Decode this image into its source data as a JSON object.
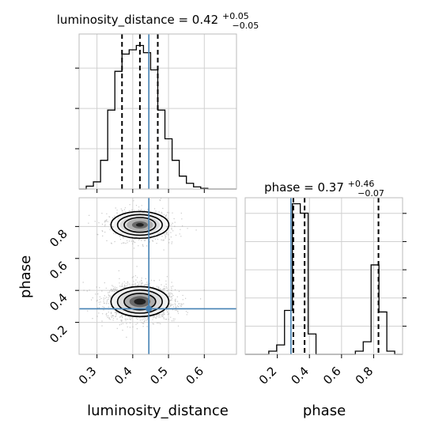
{
  "chart_data": {
    "type": "corner",
    "parameters": [
      "luminosity_distance",
      "phase"
    ],
    "truths": {
      "luminosity_distance": 0.445,
      "phase": 0.285
    },
    "truth_color": "#4682b4",
    "grid": true,
    "panels": [
      {
        "id": "luminosity_distance-hist",
        "type": "histogram",
        "title": {
          "label": "luminosity_distance = 0.42",
          "sup": "+0.05",
          "sub": "−0.05"
        },
        "xlim": [
          0.25,
          0.69
        ],
        "x_ticks": [
          0.3,
          0.4,
          0.5,
          0.6
        ],
        "bins": [
          0.25,
          0.27,
          0.29,
          0.31,
          0.33,
          0.35,
          0.37,
          0.39,
          0.41,
          0.43,
          0.45,
          0.47,
          0.49,
          0.51,
          0.53,
          0.55,
          0.57,
          0.59,
          0.61,
          0.63,
          0.65,
          0.67,
          0.69
        ],
        "counts": [
          0,
          0.02,
          0.05,
          0.2,
          0.55,
          0.82,
          0.94,
          0.97,
          1.0,
          0.95,
          0.83,
          0.55,
          0.35,
          0.2,
          0.09,
          0.04,
          0.015,
          0.005,
          0,
          0,
          0,
          0
        ],
        "quantile_lines": [
          0.37,
          0.42,
          0.47
        ]
      },
      {
        "id": "phase-hist",
        "type": "histogram",
        "title": {
          "label": "phase = 0.37",
          "sup": "+0.46",
          "sub": "−0.07"
        },
        "xlim": [
          0.0,
          0.98
        ],
        "x_ticks": [
          0.2,
          0.4,
          0.6,
          0.8
        ],
        "bins": [
          0.0,
          0.049,
          0.098,
          0.147,
          0.196,
          0.245,
          0.294,
          0.343,
          0.392,
          0.441,
          0.49,
          0.539,
          0.588,
          0.637,
          0.686,
          0.735,
          0.784,
          0.833,
          0.882,
          0.931,
          0.98
        ],
        "counts": [
          0,
          0,
          0,
          0.02,
          0.06,
          0.28,
          0.96,
          0.9,
          0.13,
          0,
          0,
          0,
          0,
          0,
          0.02,
          0.08,
          0.57,
          0.27,
          0.02,
          0
        ],
        "quantile_lines": [
          0.3,
          0.37,
          0.83
        ]
      },
      {
        "id": "joint",
        "type": "2d-density",
        "xlabel": "luminosity_distance",
        "ylabel": "phase",
        "xlim": [
          0.25,
          0.69
        ],
        "ylim": [
          0.0,
          0.98
        ],
        "x_ticks": [
          0.3,
          0.4,
          0.5,
          0.6
        ],
        "y_ticks": [
          0.2,
          0.4,
          0.6,
          0.8
        ],
        "modes": [
          {
            "x": 0.42,
            "y": 0.33,
            "sx": 0.035,
            "sy": 0.045,
            "weight": 0.72
          },
          {
            "x": 0.42,
            "y": 0.81,
            "sx": 0.035,
            "sy": 0.04,
            "weight": 0.28
          }
        ],
        "truth_point": {
          "x": 0.445,
          "y": 0.285
        }
      }
    ],
    "axis_labels": {
      "x_left": "luminosity_distance",
      "x_right": "phase",
      "y_left": "phase"
    }
  }
}
